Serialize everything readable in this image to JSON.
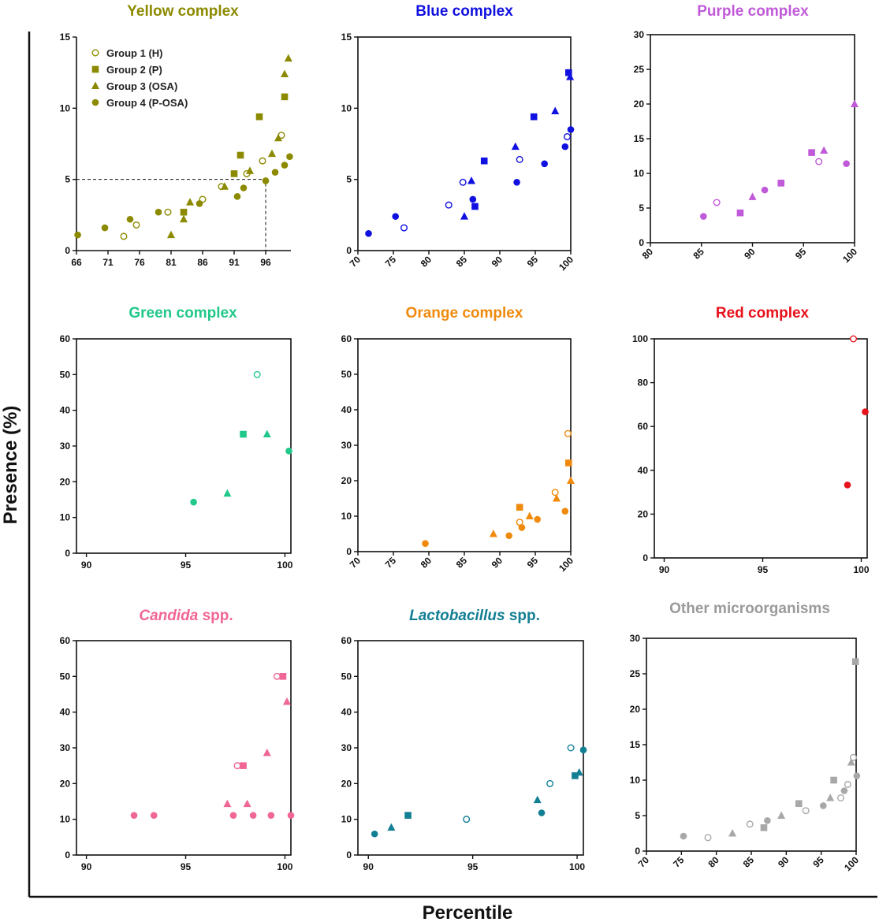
{
  "figure": {
    "ylabel": "Presence (%)",
    "xlabel": "Percentile"
  },
  "legend": {
    "panel": 0,
    "entries": [
      {
        "name": "Group 1 (H)",
        "marker": "open-circle"
      },
      {
        "name": "Group 2 (P)",
        "marker": "square"
      },
      {
        "name": "Group 3 (OSA)",
        "marker": "triangle"
      },
      {
        "name": "Group 4 (P-OSA)",
        "marker": "circle"
      }
    ]
  },
  "chart_data": [
    {
      "type": "scatter",
      "title": "Yellow complex",
      "color": "#8c8a00",
      "xlim": [
        66,
        100
      ],
      "ylim": [
        0,
        15
      ],
      "xticks": [
        66,
        71,
        76,
        81,
        86,
        91,
        96
      ],
      "yticks": [
        0,
        5,
        10,
        15
      ],
      "xticks_rotated": false,
      "reference_line": {
        "x": 96,
        "y": 5
      },
      "series": [
        {
          "name": "Group 1 (H)",
          "marker": "open-circle",
          "points": [
            [
              73.5,
              1.0
            ],
            [
              75.5,
              1.8
            ],
            [
              80.5,
              2.7
            ],
            [
              86.0,
              3.6
            ],
            [
              89.0,
              4.5
            ],
            [
              93.0,
              5.4
            ],
            [
              95.5,
              6.3
            ],
            [
              98.5,
              8.1
            ]
          ]
        },
        {
          "name": "Group 2 (P)",
          "marker": "square",
          "points": [
            [
              83.0,
              2.7
            ],
            [
              91.0,
              5.4
            ],
            [
              92.0,
              6.7
            ],
            [
              95.0,
              9.4
            ],
            [
              99.0,
              10.8
            ]
          ]
        },
        {
          "name": "Group 3 (OSA)",
          "marker": "triangle",
          "points": [
            [
              81.0,
              1.1
            ],
            [
              83.0,
              2.2
            ],
            [
              84.0,
              3.4
            ],
            [
              89.5,
              4.5
            ],
            [
              93.5,
              5.6
            ],
            [
              97.0,
              6.8
            ],
            [
              98.0,
              7.9
            ],
            [
              99.0,
              12.4
            ],
            [
              99.6,
              13.5
            ]
          ]
        },
        {
          "name": "Group 4 (P-OSA)",
          "marker": "circle",
          "points": [
            [
              66.2,
              1.1
            ],
            [
              70.5,
              1.6
            ],
            [
              74.5,
              2.2
            ],
            [
              79.0,
              2.7
            ],
            [
              85.5,
              3.3
            ],
            [
              91.5,
              3.8
            ],
            [
              92.5,
              4.4
            ],
            [
              96.0,
              4.9
            ],
            [
              97.5,
              5.5
            ],
            [
              99.0,
              6.0
            ],
            [
              99.8,
              6.6
            ]
          ]
        }
      ]
    },
    {
      "type": "scatter",
      "title": "Blue complex",
      "color": "#1010e0",
      "xlim": [
        70,
        100
      ],
      "ylim": [
        0,
        15
      ],
      "xticks": [
        70,
        75,
        80,
        85,
        90,
        95,
        100
      ],
      "yticks": [
        0,
        5,
        10,
        15
      ],
      "xticks_rotated": true,
      "series": [
        {
          "name": "Group 1 (H)",
          "marker": "open-circle",
          "points": [
            [
              76.5,
              1.6
            ],
            [
              82.8,
              3.2
            ],
            [
              84.8,
              4.8
            ],
            [
              92.8,
              6.4
            ],
            [
              99.5,
              8.0
            ]
          ]
        },
        {
          "name": "Group 2 (P)",
          "marker": "square",
          "points": [
            [
              86.5,
              3.1
            ],
            [
              87.8,
              6.3
            ],
            [
              94.8,
              9.4
            ],
            [
              99.7,
              12.5
            ]
          ]
        },
        {
          "name": "Group 3 (OSA)",
          "marker": "triangle",
          "points": [
            [
              85.0,
              2.4
            ],
            [
              86.0,
              4.9
            ],
            [
              92.2,
              7.3
            ],
            [
              97.8,
              9.8
            ],
            [
              99.9,
              12.2
            ]
          ]
        },
        {
          "name": "Group 4 (P-OSA)",
          "marker": "circle",
          "points": [
            [
              71.5,
              1.2
            ],
            [
              75.3,
              2.4
            ],
            [
              86.2,
              3.6
            ],
            [
              92.4,
              4.8
            ],
            [
              96.3,
              6.1
            ],
            [
              99.2,
              7.3
            ],
            [
              100.0,
              8.5
            ]
          ]
        }
      ]
    },
    {
      "type": "scatter",
      "title": "Purple complex",
      "color": "#c05ad8",
      "xlim": [
        80,
        100
      ],
      "ylim": [
        0,
        30
      ],
      "xticks": [
        80,
        85,
        90,
        95,
        100
      ],
      "yticks": [
        0,
        5,
        10,
        15,
        20,
        25,
        30
      ],
      "xticks_rotated": true,
      "series": [
        {
          "name": "Group 1 (H)",
          "marker": "open-circle",
          "points": [
            [
              86.5,
              5.8
            ],
            [
              96.5,
              11.7
            ]
          ]
        },
        {
          "name": "Group 2 (P)",
          "marker": "square",
          "points": [
            [
              88.8,
              4.3
            ],
            [
              92.8,
              8.6
            ],
            [
              95.8,
              13.0
            ]
          ]
        },
        {
          "name": "Group 3 (OSA)",
          "marker": "triangle",
          "points": [
            [
              90.0,
              6.6
            ],
            [
              97.0,
              13.3
            ],
            [
              100.0,
              20.0
            ]
          ]
        },
        {
          "name": "Group 4 (P-OSA)",
          "marker": "circle",
          "points": [
            [
              85.2,
              3.8
            ],
            [
              91.2,
              7.6
            ],
            [
              99.2,
              11.4
            ]
          ]
        }
      ]
    },
    {
      "type": "scatter",
      "title": "Green complex",
      "color": "#22c88a",
      "xlim": [
        89.5,
        100.3
      ],
      "ylim": [
        0,
        60
      ],
      "xticks": [
        90,
        95,
        100
      ],
      "yticks": [
        0,
        10,
        20,
        30,
        40,
        50,
        60
      ],
      "xticks_rotated": false,
      "series": [
        {
          "name": "Group 1 (H)",
          "marker": "open-circle",
          "points": [
            [
              98.6,
              50.0
            ]
          ]
        },
        {
          "name": "Group 2 (P)",
          "marker": "square",
          "points": [
            [
              97.9,
              33.3
            ]
          ]
        },
        {
          "name": "Group 3 (OSA)",
          "marker": "triangle",
          "points": [
            [
              97.1,
              16.7
            ],
            [
              99.1,
              33.3
            ]
          ]
        },
        {
          "name": "Group 4 (P-OSA)",
          "marker": "circle",
          "points": [
            [
              95.4,
              14.3
            ],
            [
              100.2,
              28.6
            ]
          ]
        }
      ]
    },
    {
      "type": "scatter",
      "title": "Orange complex",
      "color": "#f08a0c",
      "xlim": [
        70,
        100
      ],
      "ylim": [
        0,
        60
      ],
      "xticks": [
        70,
        75,
        80,
        85,
        90,
        95,
        100
      ],
      "yticks": [
        0,
        10,
        20,
        30,
        40,
        50,
        60
      ],
      "xticks_rotated": true,
      "series": [
        {
          "name": "Group 1 (H)",
          "marker": "open-circle",
          "points": [
            [
              92.8,
              8.3
            ],
            [
              97.8,
              16.7
            ],
            [
              99.6,
              33.3
            ]
          ]
        },
        {
          "name": "Group 2 (P)",
          "marker": "square",
          "points": [
            [
              92.8,
              12.5
            ],
            [
              99.7,
              25.0
            ]
          ]
        },
        {
          "name": "Group 3 (OSA)",
          "marker": "triangle",
          "points": [
            [
              89.1,
              5.0
            ],
            [
              94.2,
              10.0
            ],
            [
              98.0,
              15.0
            ],
            [
              100.0,
              20.0
            ]
          ]
        },
        {
          "name": "Group 4 (P-OSA)",
          "marker": "circle",
          "points": [
            [
              79.5,
              2.3
            ],
            [
              91.3,
              4.5
            ],
            [
              93.1,
              6.8
            ],
            [
              95.3,
              9.1
            ],
            [
              99.2,
              11.4
            ]
          ]
        }
      ]
    },
    {
      "type": "scatter",
      "title": "Red complex",
      "color": "#e8101a",
      "xlim": [
        89.5,
        100.3
      ],
      "ylim": [
        0,
        100
      ],
      "xticks": [
        90,
        95,
        100
      ],
      "yticks": [
        0,
        20,
        40,
        60,
        80,
        100
      ],
      "xticks_rotated": false,
      "series": [
        {
          "name": "Group 1 (H)",
          "marker": "open-circle",
          "points": [
            [
              99.6,
              100.0
            ]
          ]
        },
        {
          "name": "Group 4 (P-OSA)",
          "marker": "circle",
          "points": [
            [
              99.3,
              33.3
            ],
            [
              100.2,
              66.7
            ]
          ]
        }
      ]
    },
    {
      "type": "scatter",
      "title": "Candida spp.",
      "title_italic": "Candida",
      "title_rest": " spp.",
      "color": "#f06696",
      "xlim": [
        89.5,
        100.3
      ],
      "ylim": [
        0,
        60
      ],
      "xticks": [
        90,
        95,
        100
      ],
      "yticks": [
        0,
        10,
        20,
        30,
        40,
        50,
        60
      ],
      "xticks_rotated": false,
      "series": [
        {
          "name": "Group 1 (H)",
          "marker": "open-circle",
          "points": [
            [
              97.6,
              25.0
            ],
            [
              99.6,
              50.0
            ]
          ]
        },
        {
          "name": "Group 2 (P)",
          "marker": "square",
          "points": [
            [
              97.9,
              25.0
            ],
            [
              99.9,
              50.0
            ]
          ]
        },
        {
          "name": "Group 3 (OSA)",
          "marker": "triangle",
          "points": [
            [
              97.1,
              14.3
            ],
            [
              98.1,
              14.3
            ],
            [
              99.1,
              28.6
            ],
            [
              100.1,
              42.9
            ]
          ]
        },
        {
          "name": "Group 4 (P-OSA)",
          "marker": "circle",
          "points": [
            [
              92.4,
              11.1
            ],
            [
              93.4,
              11.1
            ],
            [
              97.4,
              11.1
            ],
            [
              98.4,
              11.1
            ],
            [
              99.3,
              11.1
            ],
            [
              100.3,
              11.1
            ]
          ]
        }
      ]
    },
    {
      "type": "scatter",
      "title": "Lactobacillus spp.",
      "title_italic": "Lactobacillus",
      "title_rest": " spp.",
      "color": "#127f94",
      "xlim": [
        89.5,
        100.3
      ],
      "ylim": [
        0,
        60
      ],
      "xticks": [
        90,
        95,
        100
      ],
      "yticks": [
        0,
        10,
        20,
        30,
        40,
        50,
        60
      ],
      "xticks_rotated": false,
      "series": [
        {
          "name": "Group 1 (H)",
          "marker": "open-circle",
          "points": [
            [
              94.7,
              10.0
            ],
            [
              98.7,
              20.0
            ],
            [
              99.7,
              30.0
            ]
          ]
        },
        {
          "name": "Group 2 (P)",
          "marker": "square",
          "points": [
            [
              91.9,
              11.1
            ],
            [
              99.9,
              22.2
            ]
          ]
        },
        {
          "name": "Group 3 (OSA)",
          "marker": "triangle",
          "points": [
            [
              91.1,
              7.7
            ],
            [
              98.1,
              15.4
            ],
            [
              100.1,
              23.1
            ]
          ]
        },
        {
          "name": "Group 4 (P-OSA)",
          "marker": "circle",
          "points": [
            [
              90.3,
              5.9
            ],
            [
              98.3,
              11.8
            ],
            [
              100.3,
              29.4
            ]
          ]
        }
      ]
    },
    {
      "type": "scatter",
      "title": "Other microorganisms",
      "color": "#a8a8a8",
      "xlim": [
        70,
        100
      ],
      "ylim": [
        0,
        30
      ],
      "xticks": [
        70,
        75,
        80,
        85,
        90,
        95,
        100
      ],
      "yticks": [
        0,
        5,
        10,
        15,
        20,
        25,
        30
      ],
      "xticks_rotated": true,
      "series": [
        {
          "name": "Group 1 (H)",
          "marker": "open-circle",
          "points": [
            [
              78.8,
              1.9
            ],
            [
              84.8,
              3.8
            ],
            [
              92.8,
              5.7
            ],
            [
              97.8,
              7.5
            ],
            [
              98.8,
              9.4
            ],
            [
              99.6,
              13.2
            ]
          ]
        },
        {
          "name": "Group 2 (P)",
          "marker": "square",
          "points": [
            [
              86.8,
              3.3
            ],
            [
              91.8,
              6.7
            ],
            [
              96.8,
              10.0
            ],
            [
              99.9,
              26.7
            ]
          ]
        },
        {
          "name": "Group 3 (OSA)",
          "marker": "triangle",
          "points": [
            [
              82.3,
              2.5
            ],
            [
              89.3,
              5.0
            ],
            [
              96.3,
              7.5
            ],
            [
              99.3,
              12.5
            ]
          ]
        },
        {
          "name": "Group 4 (P-OSA)",
          "marker": "circle",
          "points": [
            [
              75.3,
              2.1
            ],
            [
              87.3,
              4.3
            ],
            [
              95.3,
              6.4
            ],
            [
              98.3,
              8.5
            ],
            [
              100.1,
              10.6
            ]
          ]
        }
      ]
    }
  ]
}
